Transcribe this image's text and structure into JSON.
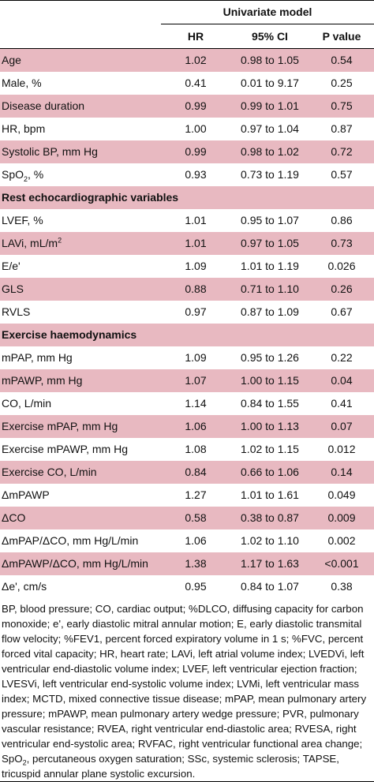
{
  "header": {
    "model": "Univariate model",
    "columns": [
      "HR",
      "95% CI",
      "P value"
    ]
  },
  "rows": [
    {
      "type": "data",
      "label": "Age",
      "hr": "1.02",
      "ci": "0.98 to 1.05",
      "p": "0.54",
      "shade": true
    },
    {
      "type": "data",
      "label": "Male, %",
      "hr": "0.41",
      "ci": "0.01 to 9.17",
      "p": "0.25",
      "shade": false
    },
    {
      "type": "data",
      "label": "Disease duration",
      "hr": "0.99",
      "ci": "0.99 to 1.01",
      "p": "0.75",
      "shade": true
    },
    {
      "type": "data",
      "label": "HR, bpm",
      "hr": "1.00",
      "ci": "0.97 to 1.04",
      "p": "0.87",
      "shade": false
    },
    {
      "type": "data",
      "label": "Systolic BP, mm Hg",
      "hr": "0.99",
      "ci": "0.98 to 1.02",
      "p": "0.72",
      "shade": true
    },
    {
      "type": "data",
      "label": "SpO",
      "label_sub": "2",
      "label_tail": ", %",
      "hr": "0.93",
      "ci": "0.73 to 1.19",
      "p": "0.57",
      "shade": false
    },
    {
      "type": "section",
      "label": "Rest echocardiographic variables",
      "shade": true
    },
    {
      "type": "data",
      "label": "LVEF, %",
      "hr": "1.01",
      "ci": "0.95 to 1.07",
      "p": "0.86",
      "shade": false
    },
    {
      "type": "data",
      "label": "LAVi, mL/m",
      "label_sup": "2",
      "hr": "1.01",
      "ci": "0.97 to 1.05",
      "p": "0.73",
      "shade": true
    },
    {
      "type": "data",
      "label": "E/e'",
      "hr": "1.09",
      "ci": "1.01 to 1.19",
      "p": "0.026",
      "shade": false
    },
    {
      "type": "data",
      "label": "GLS",
      "hr": "0.88",
      "ci": "0.71 to 1.10",
      "p": "0.26",
      "shade": true
    },
    {
      "type": "data",
      "label": "RVLS",
      "hr": "0.97",
      "ci": "0.87 to 1.09",
      "p": "0.67",
      "shade": false
    },
    {
      "type": "section",
      "label": "Exercise haemodynamics",
      "shade": true
    },
    {
      "type": "data",
      "label": "mPAP, mm Hg",
      "hr": "1.09",
      "ci": "0.95 to 1.26",
      "p": "0.22",
      "shade": false
    },
    {
      "type": "data",
      "label": "mPAWP, mm Hg",
      "hr": "1.07",
      "ci": "1.00 to 1.15",
      "p": "0.04",
      "shade": true
    },
    {
      "type": "data",
      "label": "CO, L/min",
      "hr": "1.14",
      "ci": "0.84 to 1.55",
      "p": "0.41",
      "shade": false
    },
    {
      "type": "data",
      "label": "Exercise mPAP, mm Hg",
      "hr": "1.06",
      "ci": "1.00 to 1.13",
      "p": "0.07",
      "shade": true
    },
    {
      "type": "data",
      "label": "Exercise mPAWP, mm Hg",
      "hr": "1.08",
      "ci": "1.02 to 1.15",
      "p": "0.012",
      "shade": false
    },
    {
      "type": "data",
      "label": "Exercise CO, L/min",
      "hr": "0.84",
      "ci": "0.66 to 1.06",
      "p": "0.14",
      "shade": true
    },
    {
      "type": "data",
      "label": "ΔmPAWP",
      "hr": "1.27",
      "ci": "1.01 to 1.61",
      "p": "0.049",
      "shade": false
    },
    {
      "type": "data",
      "label": "ΔCO",
      "hr": "0.58",
      "ci": "0.38 to 0.87",
      "p": "0.009",
      "shade": true
    },
    {
      "type": "data",
      "label": "ΔmPAP/ΔCO, mm Hg/L/min",
      "hr": "1.06",
      "ci": "1.02 to 1.10",
      "p": "0.002",
      "shade": false
    },
    {
      "type": "data",
      "label": "ΔmPAWP/ΔCO, mm Hg/L/min",
      "hr": "1.38",
      "ci": "1.17 to 1.63",
      "p": "<0.001",
      "shade": true
    },
    {
      "type": "data",
      "label": "Δe', cm/s",
      "hr": "0.95",
      "ci": "0.84 to 1.07",
      "p": "0.38",
      "shade": false
    }
  ],
  "footnote": {
    "part1": "BP, blood pressure; CO, cardiac output; %DLCO, diffusing capacity for carbon monoxide; e', early diastolic mitral annular motion; E, early diastolic transmital flow velocity; %FEV1, percent forced expiratory volume in 1 s; %FVC, percent forced vital capacity; HR, heart rate; LAVi, left atrial volume index; LVEDVi, left ventricular end-diastolic volume index; LVEF, left ventricular ejection fraction; LVESVi, left ventricular end-systolic volume index; LVMi, left ventricular mass index; MCTD, mixed connective tissue disease; mPAP, mean pulmonary artery pressure; mPAWP, mean pulmonary artery wedge pressure; PVR, pulmonary vascular resistance; RVEA, right ventricular end-diastolic area; RVESA, right ventricular end-systolic area; RVFAC, right ventricular functional area change; SpO",
    "sub": "2",
    "part2": ", percutaneous oxygen saturation; SSc, systemic sclerosis; TAPSE, tricuspid annular plane systolic excursion."
  }
}
